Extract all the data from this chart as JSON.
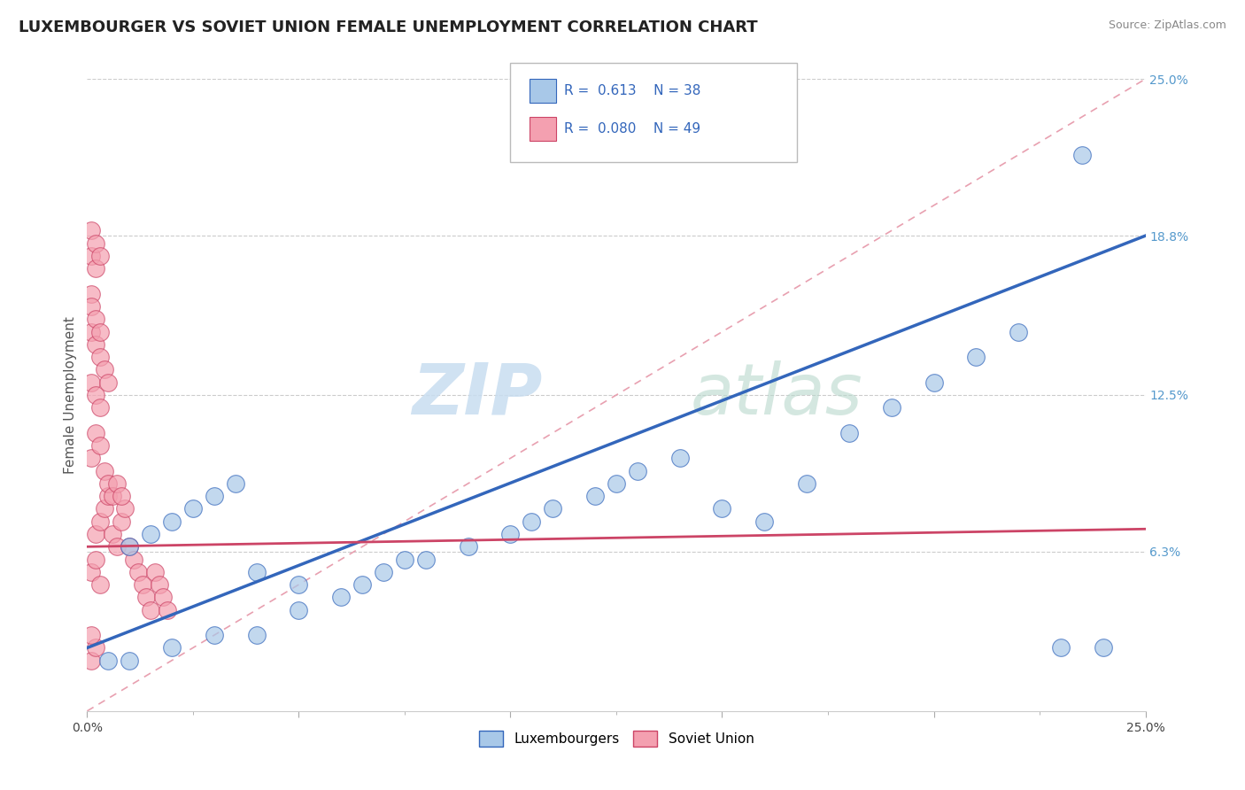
{
  "title": "LUXEMBOURGER VS SOVIET UNION FEMALE UNEMPLOYMENT CORRELATION CHART",
  "source": "Source: ZipAtlas.com",
  "ylabel": "Female Unemployment",
  "xlim": [
    0.0,
    0.25
  ],
  "ylim": [
    0.0,
    0.25
  ],
  "xtick_values": [
    0.0,
    0.05,
    0.1,
    0.15,
    0.2,
    0.25
  ],
  "xtick_labels_show": {
    "0.0": "0.0%",
    "0.25": "25.0%"
  },
  "ytick_values": [
    0.063,
    0.125,
    0.188,
    0.25
  ],
  "ytick_labels": [
    "6.3%",
    "12.5%",
    "18.8%",
    "25.0%"
  ],
  "legend1_label": "Luxembourgers",
  "legend2_label": "Soviet Union",
  "R1": "0.613",
  "N1": "38",
  "R2": "0.080",
  "N2": "49",
  "blue_color": "#A8C8E8",
  "pink_color": "#F4A0B0",
  "blue_line_color": "#3366BB",
  "pink_line_color": "#CC4466",
  "dash_line_color": "#E8A0B0",
  "title_fontsize": 13,
  "axis_label_fontsize": 11,
  "tick_fontsize": 10,
  "blue_line_y0": 0.025,
  "blue_line_y1": 0.188,
  "pink_line_y0": 0.065,
  "pink_line_y1": 0.072,
  "lux_x": [
    0.005,
    0.01,
    0.02,
    0.03,
    0.04,
    0.05,
    0.06,
    0.065,
    0.07,
    0.075,
    0.08,
    0.09,
    0.1,
    0.105,
    0.11,
    0.12,
    0.125,
    0.13,
    0.14,
    0.15,
    0.16,
    0.17,
    0.18,
    0.19,
    0.2,
    0.21,
    0.22,
    0.23,
    0.24,
    0.01,
    0.015,
    0.02,
    0.025,
    0.03,
    0.035,
    0.04,
    0.05,
    0.235
  ],
  "lux_y": [
    0.02,
    0.02,
    0.025,
    0.03,
    0.03,
    0.04,
    0.045,
    0.05,
    0.055,
    0.06,
    0.06,
    0.065,
    0.07,
    0.075,
    0.08,
    0.085,
    0.09,
    0.095,
    0.1,
    0.08,
    0.075,
    0.09,
    0.11,
    0.12,
    0.13,
    0.14,
    0.15,
    0.025,
    0.025,
    0.065,
    0.07,
    0.075,
    0.08,
    0.085,
    0.09,
    0.055,
    0.05,
    0.22
  ],
  "sov_x": [
    0.002,
    0.003,
    0.004,
    0.005,
    0.006,
    0.007,
    0.008,
    0.009,
    0.01,
    0.011,
    0.012,
    0.013,
    0.014,
    0.015,
    0.016,
    0.017,
    0.018,
    0.019,
    0.001,
    0.002,
    0.003,
    0.004,
    0.005,
    0.006,
    0.007,
    0.008,
    0.001,
    0.002,
    0.003,
    0.001,
    0.002,
    0.003,
    0.004,
    0.005,
    0.001,
    0.002,
    0.001,
    0.002,
    0.003,
    0.001,
    0.002,
    0.003,
    0.001,
    0.001,
    0.002,
    0.003,
    0.001,
    0.002,
    0.001
  ],
  "sov_y": [
    0.07,
    0.075,
    0.08,
    0.085,
    0.07,
    0.065,
    0.075,
    0.08,
    0.065,
    0.06,
    0.055,
    0.05,
    0.045,
    0.04,
    0.055,
    0.05,
    0.045,
    0.04,
    0.1,
    0.11,
    0.105,
    0.095,
    0.09,
    0.085,
    0.09,
    0.085,
    0.13,
    0.125,
    0.12,
    0.15,
    0.145,
    0.14,
    0.135,
    0.13,
    0.18,
    0.175,
    0.19,
    0.185,
    0.18,
    0.055,
    0.06,
    0.05,
    0.165,
    0.16,
    0.155,
    0.15,
    0.02,
    0.025,
    0.03
  ]
}
